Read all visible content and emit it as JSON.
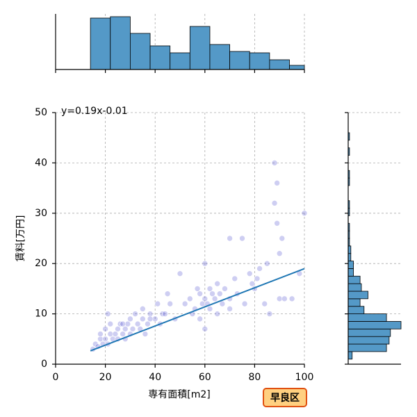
{
  "chart_data": [
    {
      "type": "scatter",
      "xlabel": "専有面積[m2]",
      "ylabel": "賃料[万円]",
      "color": "#3b3bcc",
      "x": [
        15,
        16,
        17,
        18,
        18,
        19,
        20,
        20,
        21,
        22,
        22,
        23,
        24,
        25,
        25,
        26,
        27,
        28,
        28,
        29,
        30,
        30,
        31,
        32,
        33,
        34,
        35,
        35,
        36,
        37,
        38,
        40,
        41,
        42,
        43,
        45,
        46,
        48,
        50,
        52,
        54,
        55,
        56,
        57,
        58,
        58,
        59,
        60,
        60,
        61,
        62,
        62,
        63,
        64,
        65,
        65,
        66,
        67,
        68,
        70,
        70,
        72,
        73,
        75,
        76,
        78,
        79,
        80,
        81,
        82,
        84,
        85,
        86,
        88,
        88,
        89,
        89,
        90,
        90,
        91,
        92,
        95,
        98,
        100,
        60,
        44,
        38,
        27,
        21,
        70
      ],
      "y": [
        3,
        4,
        3.5,
        5,
        6,
        4,
        7,
        5,
        4,
        6,
        8,
        5,
        6,
        5,
        7,
        8,
        6,
        7,
        5,
        8,
        9,
        6,
        7,
        10,
        8,
        7,
        9,
        11,
        6,
        8,
        10,
        9,
        12,
        8,
        10,
        14,
        12,
        9,
        18,
        12,
        13,
        10,
        11,
        15,
        14,
        9,
        12,
        20,
        13,
        12,
        15,
        11,
        14,
        13,
        16,
        10,
        14,
        12,
        15,
        25,
        13,
        17,
        14,
        25,
        12,
        18,
        16,
        15,
        17,
        19,
        12,
        20,
        10,
        32,
        40,
        36,
        28,
        22,
        13,
        25,
        13,
        13,
        18,
        30,
        7,
        10,
        9,
        8,
        10,
        11
      ],
      "xlim": [
        0,
        100
      ],
      "ylim": [
        0,
        50
      ],
      "xticks": [
        0,
        20,
        40,
        60,
        80,
        100
      ],
      "yticks": [
        0,
        10,
        20,
        30,
        40,
        50
      ],
      "grid": true,
      "fit": {
        "x": [
          14,
          100
        ],
        "y": [
          2.65,
          18.99
        ],
        "color": "#1f77b4",
        "label": "y=0.19x-0.01"
      },
      "badge": "早良区"
    },
    {
      "type": "histogram",
      "orientation": "vertical",
      "color": "#5499c7",
      "bins": [
        14,
        22,
        30,
        38,
        46,
        54,
        62,
        70,
        78,
        86,
        94,
        102
      ],
      "counts": [
        37,
        38,
        26,
        17,
        12,
        31,
        18,
        13,
        12,
        7,
        3
      ],
      "ylim": [
        0,
        40
      ]
    },
    {
      "type": "histogram",
      "orientation": "horizontal",
      "color": "#5499c7",
      "bins": [
        1,
        2.5,
        4,
        5.5,
        7,
        8.5,
        10,
        11.5,
        13,
        14.5,
        16,
        17.5,
        19,
        20.5,
        22,
        23.5,
        25,
        26.5,
        28,
        29.5,
        31,
        32.5,
        34,
        35.5,
        37,
        38.5,
        40,
        41.5,
        43,
        44.5,
        46
      ],
      "counts": [
        3,
        29,
        31,
        32,
        40,
        29,
        12,
        9,
        15,
        10,
        9,
        4,
        4,
        2,
        2,
        1,
        1,
        1,
        0,
        1,
        1,
        0,
        0,
        1,
        1,
        0,
        0,
        1,
        0,
        1
      ],
      "xlim": [
        0,
        40
      ]
    }
  ]
}
